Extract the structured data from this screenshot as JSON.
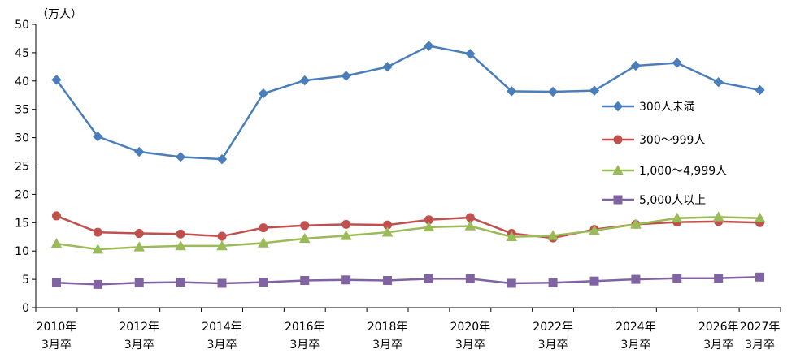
{
  "chart_data": {
    "type": "line",
    "unit_label": "（万人）",
    "ylim": [
      0,
      50
    ],
    "yticks": [
      0,
      5,
      10,
      15,
      20,
      25,
      30,
      35,
      40,
      45,
      50
    ],
    "grid": false,
    "legend_position": "right",
    "x": [
      "2010年3月卒",
      "2011年3月卒",
      "2012年3月卒",
      "2013年3月卒",
      "2014年3月卒",
      "2015年3月卒",
      "2016年3月卒",
      "2017年3月卒",
      "2018年3月卒",
      "2019年3月卒",
      "2020年3月卒",
      "2021年3月卒",
      "2022年3月卒",
      "2023年3月卒",
      "2024年3月卒",
      "2025年3月卒",
      "2026年3月卒",
      "2027年3月卒"
    ],
    "x_tick_labels": [
      {
        "index": 0,
        "line1": "2010年",
        "line2": "3月卒"
      },
      {
        "index": 2,
        "line1": "2012年",
        "line2": "3月卒"
      },
      {
        "index": 4,
        "line1": "2014年",
        "line2": "3月卒"
      },
      {
        "index": 6,
        "line1": "2016年",
        "line2": "3月卒"
      },
      {
        "index": 8,
        "line1": "2018年",
        "line2": "3月卒"
      },
      {
        "index": 10,
        "line1": "2020年",
        "line2": "3月卒"
      },
      {
        "index": 12,
        "line1": "2022年",
        "line2": "3月卒"
      },
      {
        "index": 14,
        "line1": "2024年",
        "line2": "3月卒"
      },
      {
        "index": 16,
        "line1": "2026年",
        "line2": "3月卒"
      },
      {
        "index": 17,
        "line1": "2027年",
        "line2": "3月卒"
      }
    ],
    "series": [
      {
        "name": "300人未満",
        "color": "#4A7EBB",
        "marker": "diamond",
        "values": [
          40.2,
          30.2,
          27.5,
          26.6,
          26.2,
          37.8,
          40.1,
          40.9,
          42.5,
          46.2,
          44.8,
          38.2,
          38.1,
          38.3,
          42.7,
          43.2,
          39.8,
          38.4
        ]
      },
      {
        "name": "300～999人",
        "color": "#C0504D",
        "marker": "circle",
        "values": [
          16.2,
          13.3,
          13.1,
          13.0,
          12.6,
          14.1,
          14.5,
          14.7,
          14.6,
          15.5,
          15.9,
          13.1,
          12.3,
          13.8,
          14.7,
          15.1,
          15.2,
          15.0
        ]
      },
      {
        "name": "1,000～4,999人",
        "color": "#9BBB59",
        "marker": "triangle",
        "values": [
          11.3,
          10.3,
          10.7,
          10.9,
          10.9,
          11.4,
          12.2,
          12.7,
          13.3,
          14.2,
          14.4,
          12.5,
          12.7,
          13.6,
          14.7,
          15.8,
          16.0,
          15.8
        ]
      },
      {
        "name": "5,000人以上",
        "color": "#8064A2",
        "marker": "square",
        "values": [
          4.4,
          4.1,
          4.4,
          4.5,
          4.3,
          4.5,
          4.8,
          4.9,
          4.8,
          5.1,
          5.1,
          4.3,
          4.4,
          4.7,
          5.0,
          5.2,
          5.2,
          5.4
        ]
      }
    ]
  }
}
